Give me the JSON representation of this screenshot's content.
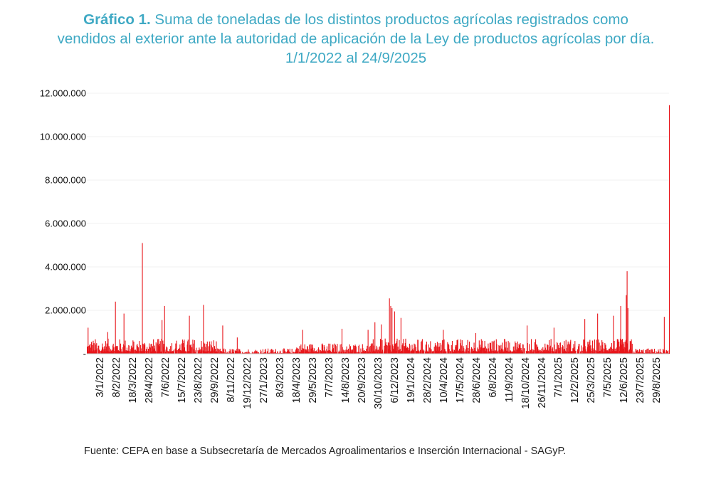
{
  "title": {
    "prefix": "Gráfico 1.",
    "line1": "Suma de toneladas de los distintos productos agrícolas registrados como",
    "line2": "vendidos al exterior ante la autoridad de aplicación de la Ley de productos agrícolas por día.",
    "line3": "1/1/2022 al 24/9/2025"
  },
  "source": "Fuente: CEPA en base a Subsecretaría de Mercados Agroalimentarios e Inserción Internacional - SAGyP.",
  "colors": {
    "series": "#e8161b",
    "title": "#3fa9c4"
  },
  "chart_data": {
    "type": "bar",
    "x_range": [
      "1/1/2022",
      "24/9/2025"
    ],
    "ylim": [
      0,
      12000000
    ],
    "y_ticks": [
      {
        "value": 0,
        "label": "-"
      },
      {
        "value": 2000000,
        "label": "2.000.000"
      },
      {
        "value": 4000000,
        "label": "4.000.000"
      },
      {
        "value": 6000000,
        "label": "6.000.000"
      },
      {
        "value": 8000000,
        "label": "8.000.000"
      },
      {
        "value": 10000000,
        "label": "10.000.000"
      },
      {
        "value": 12000000,
        "label": "12.000.000"
      }
    ],
    "x_tick_labels": [
      "3/1/2022",
      "8/2/2022",
      "18/3/2022",
      "28/4/2022",
      "7/6/2022",
      "15/7/2022",
      "23/8/2022",
      "29/9/2022",
      "8/11/2022",
      "19/12/2022",
      "27/1/2023",
      "8/3/2023",
      "18/4/2023",
      "29/5/2023",
      "7/7/2023",
      "14/8/2023",
      "20/9/2023",
      "30/10/2023",
      "6/12/2023",
      "19/1/2024",
      "28/2/2024",
      "10/4/2024",
      "17/5/2024",
      "28/6/2024",
      "6/8/2024",
      "11/9/2024",
      "18/10/2024",
      "26/11/2024",
      "7/1/2025",
      "12/2/2025",
      "25/3/2025",
      "7/5/2025",
      "12/6/2025",
      "23/7/2025",
      "29/8/2025"
    ],
    "grid": true,
    "peaks": [
      {
        "date": "3/1/2022",
        "value": 1200000
      },
      {
        "date": "18/2/2022",
        "value": 1000000
      },
      {
        "date": "8/3/2022",
        "value": 2400000
      },
      {
        "date": "28/3/2022",
        "value": 1850000
      },
      {
        "date": "10/5/2022",
        "value": 5100000
      },
      {
        "date": "25/6/2022",
        "value": 1550000
      },
      {
        "date": "1/7/2022",
        "value": 2200000
      },
      {
        "date": "28/8/2022",
        "value": 1750000
      },
      {
        "date": "30/9/2022",
        "value": 2250000
      },
      {
        "date": "14/11/2022",
        "value": 1300000
      },
      {
        "date": "18/12/2022",
        "value": 750000
      },
      {
        "date": "20/5/2023",
        "value": 1100000
      },
      {
        "date": "20/8/2023",
        "value": 1150000
      },
      {
        "date": "20/10/2023",
        "value": 1100000
      },
      {
        "date": "5/11/2023",
        "value": 1450000
      },
      {
        "date": "20/11/2023",
        "value": 1350000
      },
      {
        "date": "9/12/2023",
        "value": 2550000
      },
      {
        "date": "12/12/2023",
        "value": 2200000
      },
      {
        "date": "15/12/2023",
        "value": 2100000
      },
      {
        "date": "21/12/2023",
        "value": 1950000
      },
      {
        "date": "5/1/2024",
        "value": 1650000
      },
      {
        "date": "13/4/2024",
        "value": 1100000
      },
      {
        "date": "28/6/2024",
        "value": 950000
      },
      {
        "date": "26/10/2024",
        "value": 1300000
      },
      {
        "date": "28/12/2024",
        "value": 1200000
      },
      {
        "date": "10/3/2025",
        "value": 1600000
      },
      {
        "date": "9/4/2025",
        "value": 1850000
      },
      {
        "date": "16/5/2025",
        "value": 1750000
      },
      {
        "date": "2/6/2025",
        "value": 2200000
      },
      {
        "date": "15/6/2025",
        "value": 2700000
      },
      {
        "date": "17/6/2025",
        "value": 3800000
      },
      {
        "date": "19/6/2025",
        "value": 2100000
      },
      {
        "date": "12/9/2025",
        "value": 1700000
      },
      {
        "date": "24/9/2025",
        "value": 11450000
      }
    ],
    "baseline_segments": [
      {
        "from": "1/1/2022",
        "to": "31/10/2022",
        "min": 100000,
        "max": 700000
      },
      {
        "from": "1/11/2022",
        "to": "30/4/2023",
        "min": 20000,
        "max": 250000
      },
      {
        "from": "1/5/2023",
        "to": "31/10/2023",
        "min": 80000,
        "max": 500000
      },
      {
        "from": "1/11/2023",
        "to": "30/6/2025",
        "min": 100000,
        "max": 700000
      },
      {
        "from": "1/7/2025",
        "to": "23/9/2025",
        "min": 20000,
        "max": 250000
      }
    ]
  }
}
